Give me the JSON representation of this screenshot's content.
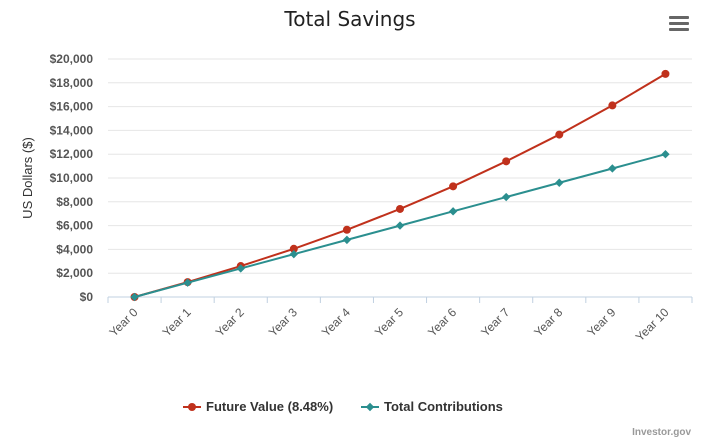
{
  "chart_data": {
    "type": "line",
    "title": "Total Savings",
    "ylabel": "US Dollars ($)",
    "xlabel": "",
    "categories": [
      "Year 0",
      "Year 1",
      "Year 2",
      "Year 3",
      "Year 4",
      "Year 5",
      "Year 6",
      "Year 7",
      "Year 8",
      "Year 9",
      "Year 10"
    ],
    "ylim": [
      0,
      20000
    ],
    "yticks": [
      "$0",
      "$2,000",
      "$4,000",
      "$6,000",
      "$8,000",
      "$10,000",
      "$12,000",
      "$14,000",
      "$16,000",
      "$18,000",
      "$20,000"
    ],
    "grid": true,
    "legend_position": "bottom",
    "series": [
      {
        "name": "Future Value (8.48%)",
        "color": "#c0311c",
        "marker": "circle",
        "values": [
          0,
          1250,
          2600,
          4050,
          5650,
          7400,
          9300,
          11400,
          13650,
          16100,
          18750
        ]
      },
      {
        "name": "Total Contributions",
        "color": "#2b8f8f",
        "marker": "diamond",
        "values": [
          0,
          1200,
          2400,
          3600,
          4800,
          6000,
          7200,
          8400,
          9600,
          10800,
          12000
        ]
      }
    ]
  },
  "menu": {
    "icon": "hamburger-menu-icon"
  },
  "credit": "Investor.gov"
}
